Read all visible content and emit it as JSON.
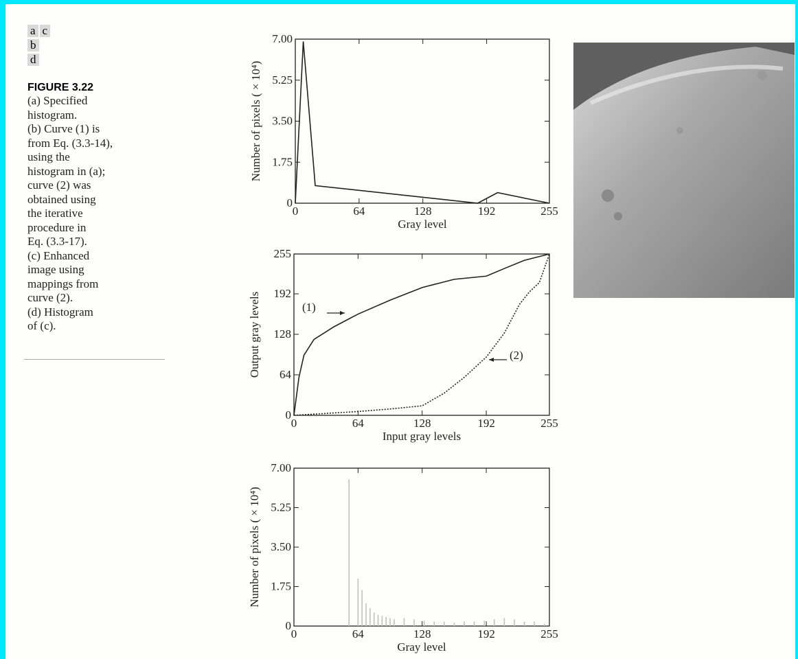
{
  "panel_labels": [
    "a",
    "c",
    "b",
    "d"
  ],
  "caption": {
    "title": "FIGURE 3.22",
    "lines": [
      "(a) Specified",
      "histogram.",
      "(b) Curve (1) is",
      "from Eq. (3.3-14),",
      "using the",
      "histogram in (a);",
      "curve (2) was",
      "obtained using",
      "the iterative",
      "procedure in",
      "Eq. (3.3-17).",
      "(c) Enhanced",
      "image using",
      "mappings from",
      "curve (2).",
      "(d) Histogram",
      "of (c)."
    ]
  },
  "chart_data": [
    {
      "type": "line",
      "x_label": "Gray level",
      "y_label": "Number of pixels ( × 10⁴)",
      "xlim": [
        0,
        255
      ],
      "xticks": [
        0,
        64,
        128,
        192,
        255
      ],
      "ylim": [
        0,
        7
      ],
      "yticks": [
        0,
        1.75,
        {
          "value": 3.5,
          "label": "3.50"
        },
        5.25,
        {
          "value": 7,
          "label": "7.00"
        }
      ],
      "series": [
        {
          "x": [
            0,
            8,
            20,
            183,
            203,
            255
          ],
          "values": [
            0,
            6.9,
            0.75,
            0,
            0.45,
            0
          ],
          "color": "#222",
          "style": "solid"
        }
      ]
    },
    {
      "type": "line",
      "x_label": "Input gray levels",
      "y_label": "Output gray levels",
      "xlim": [
        0,
        255
      ],
      "xticks": [
        0,
        64,
        128,
        192,
        255
      ],
      "ylim": [
        0,
        255
      ],
      "yticks": [
        0,
        64,
        128,
        192,
        255
      ],
      "annotations": [
        "(1)",
        "(2)"
      ],
      "series": [
        {
          "x": [
            0,
            5,
            10,
            20,
            40,
            64,
            96,
            128,
            160,
            192,
            210,
            230,
            255
          ],
          "values": [
            0,
            60,
            95,
            120,
            140,
            160,
            182,
            202,
            215,
            220,
            232,
            245,
            255
          ],
          "color": "#222",
          "style": "solid"
        },
        {
          "x": [
            0,
            32,
            64,
            96,
            128,
            150,
            170,
            192,
            210,
            225,
            235,
            245,
            255
          ],
          "values": [
            0,
            3,
            6,
            10,
            15,
            35,
            60,
            92,
            130,
            175,
            195,
            210,
            255
          ],
          "color": "#222",
          "style": "dotted"
        }
      ]
    },
    {
      "type": "bar",
      "x_label": "Gray level",
      "y_label": "Number of pixels ( × 10⁴)",
      "xlim": [
        0,
        255
      ],
      "xticks": [
        0,
        64,
        128,
        192,
        255
      ],
      "ylim": [
        0,
        7
      ],
      "yticks": [
        0,
        1.75,
        {
          "value": 3.5,
          "label": "3.50"
        },
        5.25,
        {
          "value": 7,
          "label": "7.00"
        }
      ],
      "color": "#bdbdbd",
      "x": [
        55,
        64,
        68,
        72,
        76,
        80,
        84,
        88,
        92,
        96,
        100,
        110,
        120,
        130,
        140,
        150,
        160,
        170,
        180,
        190,
        200,
        210,
        220,
        230,
        240,
        250
      ],
      "values": [
        6.5,
        2.1,
        1.6,
        1.0,
        0.8,
        0.6,
        0.5,
        0.45,
        0.4,
        0.35,
        0.3,
        0.35,
        0.3,
        0.25,
        0.2,
        0.2,
        0.15,
        0.2,
        0.2,
        0.25,
        0.3,
        0.35,
        0.3,
        0.2,
        0.2,
        0.1
      ]
    }
  ]
}
